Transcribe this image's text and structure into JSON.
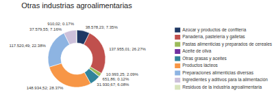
{
  "chart_data": {
    "type": "donut",
    "title": "Otras industrias agroalimentarias",
    "categories": [
      "Azúcar y productos de confitería",
      "Panadería, pastelería y galletas",
      "Pastas alimenticias y preparados de cereales",
      "Aceite de oliva",
      "Otras grasas y aceites",
      "Productos lácteos",
      "Preparaciones alimenticias diversas",
      "Ingredientes y aditivos para la alimentación",
      "Residuos de la industria agroalimentaria"
    ],
    "values": [
      38578.23,
      137955.01,
      10993.25,
      651.86,
      31930.67,
      148934.52,
      117520.49,
      37579.55,
      910.02
    ],
    "value_labels": [
      "38.578,23; 7.35%",
      "137.955,01; 26.27%",
      "10.993,25; 2.09%",
      "651,86; 0.12%",
      "31.930,67; 6.08%",
      "148.934,52; 28.37%",
      "117.520,49; 22.38%",
      "37.579,55; 7.16%",
      "910,02; 0.17%"
    ],
    "colors": [
      "#1F3864",
      "#C0504D",
      "#9BBB59",
      "#7030A0",
      "#31849B",
      "#F79646",
      "#8DB4E2",
      "#CCC0DA",
      "#D8E4BC"
    ],
    "data_labels": true,
    "legend": "right"
  }
}
